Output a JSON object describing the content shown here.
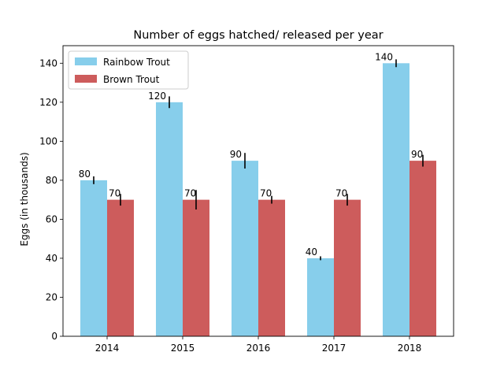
{
  "chart_data": {
    "type": "bar",
    "title": "Number of eggs hatched/ released per year",
    "xlabel": "",
    "ylabel": "Eggs (in thousands)",
    "categories": [
      "2014",
      "2015",
      "2016",
      "2017",
      "2018"
    ],
    "ylim": [
      0,
      149
    ],
    "yticks": [
      0,
      20,
      40,
      60,
      80,
      100,
      120,
      140
    ],
    "grid": false,
    "legend": "top-left",
    "series": [
      {
        "name": "Rainbow Trout",
        "color": "#87ceeb",
        "values": [
          80,
          120,
          90,
          40,
          140
        ],
        "labels": [
          "80",
          "120",
          "90",
          "40",
          "140"
        ],
        "errors": [
          2,
          3,
          4,
          1,
          2
        ]
      },
      {
        "name": "Brown Trout",
        "color": "#cd5c5c",
        "values": [
          70,
          70,
          70,
          70,
          90
        ],
        "labels": [
          "70",
          "70",
          "70",
          "70",
          "90"
        ],
        "errors": [
          3,
          5,
          2,
          3,
          3
        ]
      }
    ]
  }
}
